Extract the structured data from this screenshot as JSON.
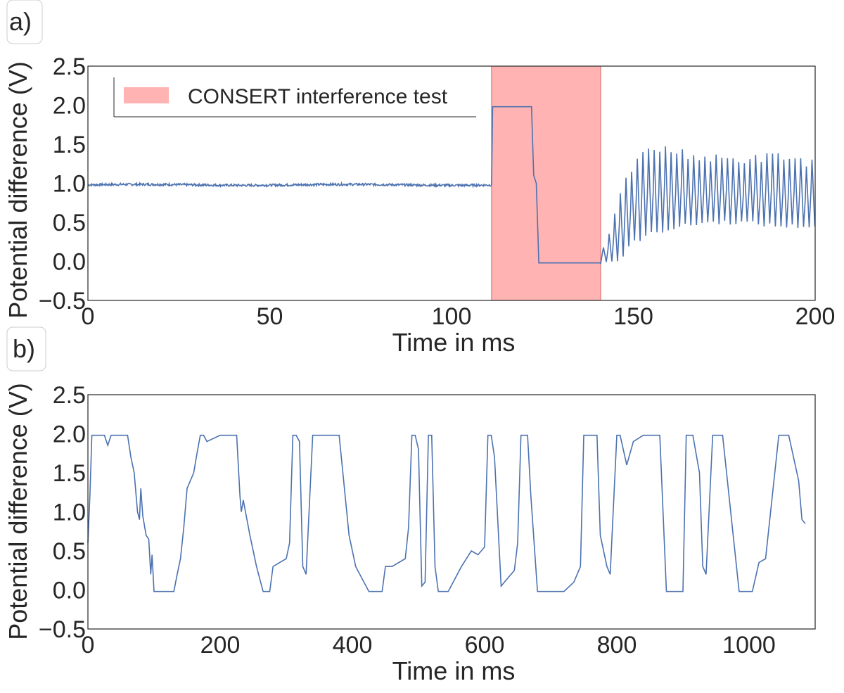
{
  "chart_data": [
    {
      "panel_label": "a)",
      "type": "line",
      "xlabel": "Time in ms",
      "ylabel": "Potential difference (V)",
      "xlim": [
        0,
        200
      ],
      "ylim": [
        -0.5,
        2.5
      ],
      "xticks": [
        "0",
        "50",
        "100",
        "150",
        "200"
      ],
      "yticks": [
        "−0.5",
        "0.0",
        "0.5",
        "1.0",
        "1.5",
        "2.0",
        "2.5"
      ],
      "legend": {
        "label": "CONSERT interference test",
        "location": "top-left"
      },
      "highlight": {
        "label": "CONSERT interference test",
        "x_start": 111,
        "x_end": 141,
        "color": "#ffb3b3"
      },
      "series": [
        {
          "name": "potential difference",
          "color": "#4c72b0",
          "segments": [
            {
              "kind": "noise",
              "x_start": 0,
              "x_end": 111,
              "level": 0.98,
              "amplitude": 0.015
            },
            {
              "kind": "points",
              "x": [
                111,
                111.3,
                122,
                122.6,
                123.3,
                123.8,
                124,
                141
              ],
              "y": [
                0.98,
                1.98,
                1.98,
                1.1,
                1.0,
                0.3,
                -0.02,
                -0.02
              ]
            },
            {
              "kind": "oscillation",
              "x_start": 141,
              "x_end": 200,
              "period": 1.55,
              "envelope_x": [
                141,
                143,
                145,
                147,
                150,
                155,
                160,
                170,
                180,
                190,
                200
              ],
              "upper": [
                -0.02,
                0.35,
                0.6,
                0.9,
                1.25,
                1.45,
                1.42,
                1.32,
                1.3,
                1.35,
                1.25
              ],
              "lower": [
                -0.02,
                0.0,
                0.0,
                0.05,
                0.25,
                0.35,
                0.42,
                0.5,
                0.5,
                0.45,
                0.45
              ]
            }
          ]
        }
      ]
    },
    {
      "panel_label": "b)",
      "type": "line",
      "xlabel": "Time in ms",
      "ylabel": "Potential difference (V)",
      "xlim": [
        0,
        1100
      ],
      "ylim": [
        -0.5,
        2.5
      ],
      "xticks": [
        "0",
        "200",
        "400",
        "600",
        "800",
        "1000"
      ],
      "yticks": [
        "−0.5",
        "0.0",
        "0.5",
        "1.0",
        "1.5",
        "2.0",
        "2.5"
      ],
      "series": [
        {
          "name": "potential difference",
          "color": "#4c72b0",
          "x": [
            0,
            3,
            6,
            12,
            25,
            30,
            35,
            40,
            60,
            65,
            70,
            75,
            78,
            80,
            83,
            88,
            92,
            95,
            97,
            100,
            130,
            135,
            140,
            145,
            150,
            160,
            165,
            170,
            175,
            180,
            200,
            205,
            210,
            225,
            230,
            232,
            235,
            245,
            255,
            265,
            275,
            280,
            290,
            300,
            305,
            310,
            315,
            320,
            325,
            330,
            340,
            355,
            380,
            395,
            405,
            425,
            445,
            450,
            460,
            480,
            485,
            490,
            495,
            500,
            505,
            510,
            515,
            520,
            525,
            530,
            545,
            565,
            580,
            590,
            600,
            605,
            610,
            615,
            625,
            630,
            645,
            650,
            655,
            665,
            670,
            680,
            695,
            720,
            735,
            745,
            750,
            760,
            770,
            775,
            785,
            790,
            800,
            805,
            815,
            825,
            840,
            865,
            875,
            880,
            900,
            905,
            915,
            925,
            930,
            935,
            945,
            960,
            985,
            1005,
            1015,
            1025,
            1045,
            1060,
            1075,
            1080,
            1085
          ],
          "y": [
            0.6,
            1.2,
            1.98,
            1.98,
            1.98,
            1.85,
            1.98,
            1.98,
            1.98,
            1.7,
            1.5,
            1.0,
            0.9,
            1.3,
            0.95,
            0.7,
            0.65,
            0.2,
            0.45,
            -0.02,
            -0.02,
            0.2,
            0.4,
            0.8,
            1.3,
            1.5,
            1.75,
            1.98,
            1.98,
            1.9,
            1.98,
            1.98,
            1.98,
            1.98,
            1.2,
            1.0,
            1.15,
            0.7,
            0.3,
            -0.02,
            -0.02,
            0.3,
            0.35,
            0.4,
            0.6,
            1.98,
            1.98,
            1.9,
            0.3,
            0.2,
            1.98,
            1.98,
            1.98,
            0.7,
            0.3,
            -0.02,
            -0.02,
            0.3,
            0.3,
            0.4,
            0.8,
            1.98,
            1.98,
            1.8,
            0.05,
            0.1,
            1.98,
            1.98,
            0.3,
            -0.02,
            -0.02,
            0.3,
            0.5,
            0.45,
            0.55,
            1.98,
            1.98,
            1.7,
            0.05,
            0.1,
            0.25,
            0.6,
            1.98,
            1.98,
            1.2,
            -0.02,
            -0.02,
            -0.02,
            0.1,
            0.3,
            1.98,
            1.98,
            1.98,
            0.7,
            0.3,
            0.2,
            1.98,
            1.98,
            1.6,
            1.9,
            1.98,
            1.98,
            -0.02,
            -0.02,
            -0.02,
            1.98,
            1.98,
            1.5,
            0.3,
            0.2,
            1.98,
            1.98,
            -0.02,
            -0.02,
            0.35,
            0.4,
            1.98,
            1.98,
            1.4,
            0.9,
            0.85
          ]
        }
      ]
    }
  ]
}
